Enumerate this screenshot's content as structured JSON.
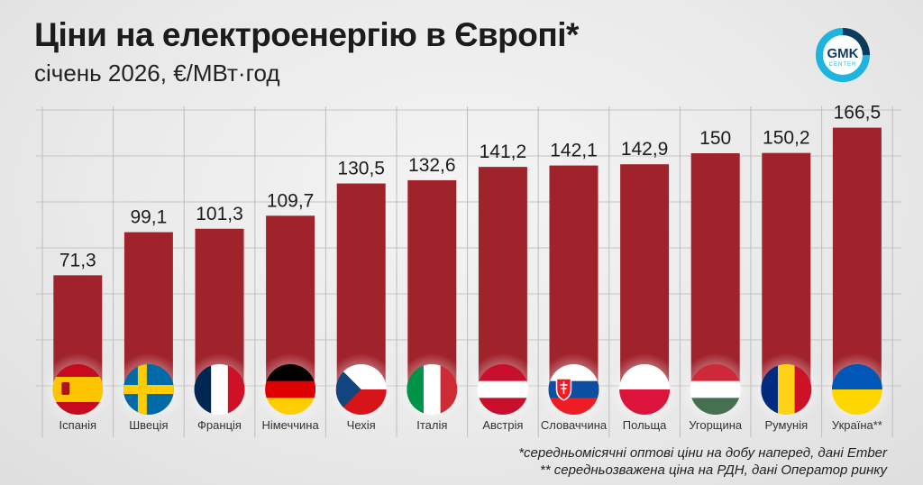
{
  "title": "Ціни на електроенергію в Європі*",
  "subtitle": "січень 2026, €/МВт·год",
  "logo": {
    "line1": "GMK",
    "line2": "CENTER",
    "colors": {
      "ring": "#1fb4dd",
      "dark": "#0d3b5c"
    }
  },
  "footnotes": [
    "*середньомісячні оптові ціни на добу наперед, дані Ember",
    "** середньозважена ціна на РДН, дані Оператор ринку"
  ],
  "chart_data": {
    "type": "bar",
    "categories": [
      "Іспанія",
      "Швеція",
      "Франція",
      "Німеччина",
      "Чехія",
      "Італія",
      "Австрія",
      "Словаччина",
      "Польща",
      "Угорщина",
      "Румунія",
      "Україна**"
    ],
    "values": [
      71.3,
      99.1,
      101.3,
      109.7,
      130.5,
      132.6,
      141.2,
      142.1,
      142.9,
      150,
      150.2,
      166.5
    ],
    "data_labels": [
      "71,3",
      "99,1",
      "101,3",
      "109,7",
      "130,5",
      "132,6",
      "141,2",
      "142,1",
      "142,9",
      "150",
      "150,2",
      "166,5"
    ],
    "flags": [
      "spain-flag-icon",
      "sweden-flag-icon",
      "france-flag-icon",
      "germany-flag-icon",
      "czechia-flag-icon",
      "italy-flag-icon",
      "austria-flag-icon",
      "slovakia-flag-icon",
      "poland-flag-icon",
      "hungary-flag-icon",
      "romania-flag-icon",
      "ukraine-flag-icon"
    ],
    "bar_color": "#a0232c",
    "ylim": [
      0,
      180
    ],
    "grid": true
  }
}
